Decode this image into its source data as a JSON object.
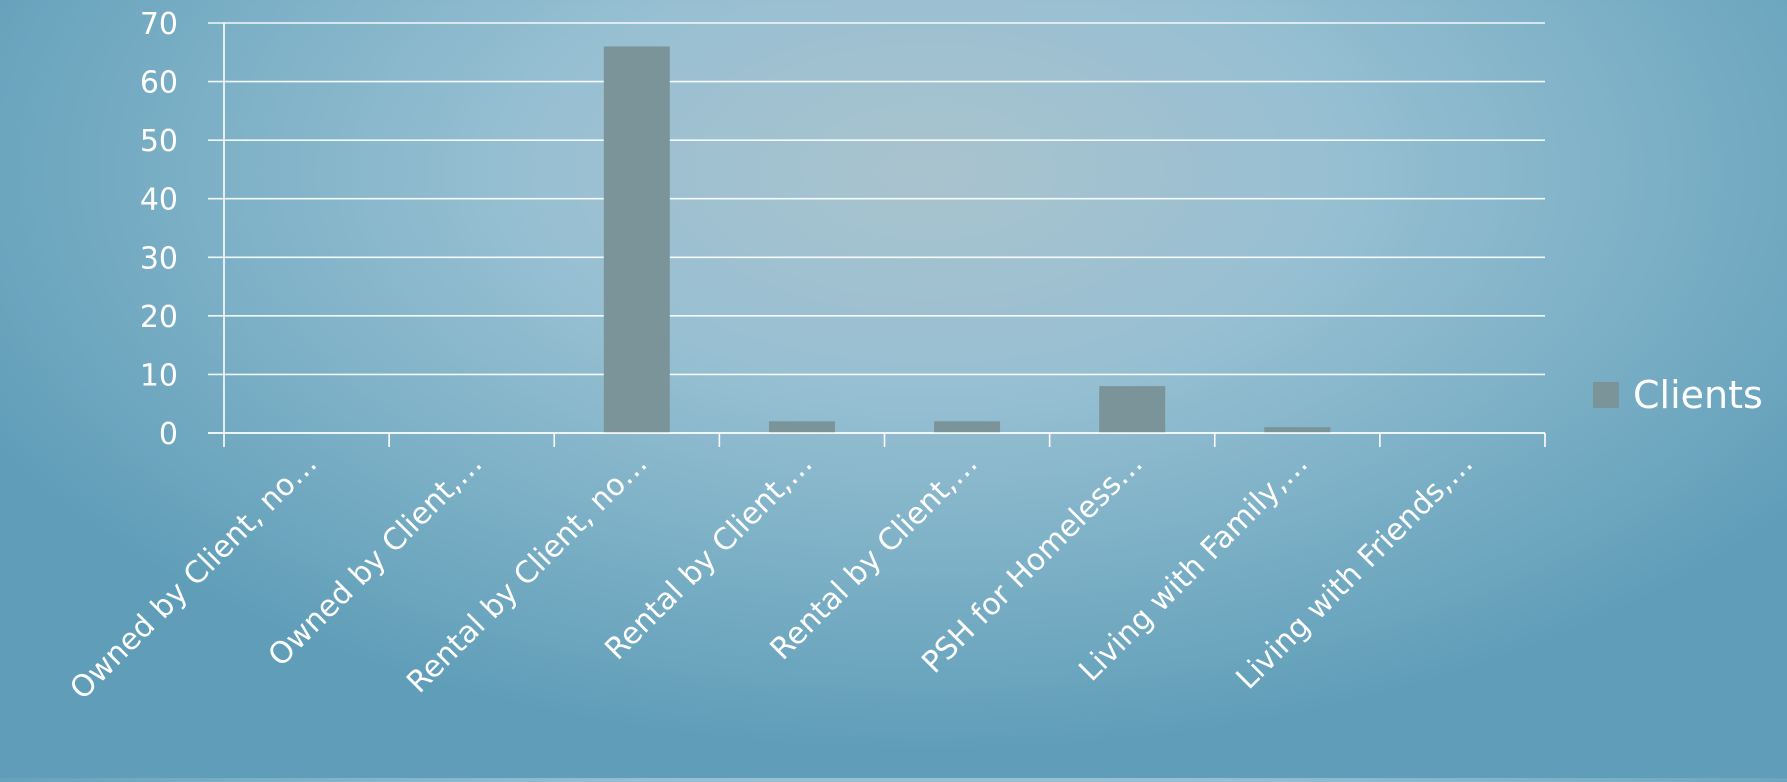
{
  "chart_data": {
    "type": "bar",
    "categories": [
      "Owned by Client, no…",
      "Owned by Client,…",
      "Rental by Client, no…",
      "Rental by Client,…",
      "Rental by Client,…",
      "PSH for Homeless…",
      "Living with Family,…",
      "Living with Friends,…"
    ],
    "series": [
      {
        "name": "Clients",
        "values": [
          0,
          0,
          66,
          2,
          2,
          8,
          1,
          0
        ]
      }
    ],
    "ylim": [
      0,
      70
    ],
    "yticks": [
      0,
      10,
      20,
      30,
      40,
      50,
      60,
      70
    ],
    "grid": true,
    "legend": "right",
    "colors": {
      "bar": "#7b9499",
      "grid": "#ffffff",
      "text": "#ffffff"
    }
  }
}
